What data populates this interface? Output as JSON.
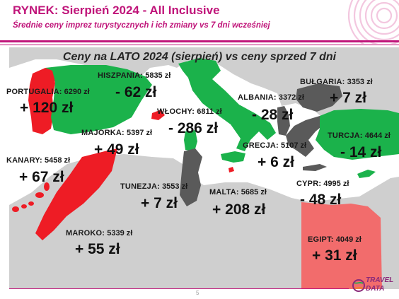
{
  "header": {
    "title": "RYNEK: Sierpień 2024 - All Inclusive",
    "subtitle": "Średnie ceny imprez turystycznych i ich zmiany vs 7 dni wcześniej"
  },
  "map": {
    "title": "Ceny na LATO 2024 (sierpień) vs ceny sprzed 7 dni",
    "color_legend": {
      "increase": "#ee1c25",
      "decrease": "#1bb24b",
      "small_change": "#5a5a5a",
      "other_land": "#cfcfcf",
      "sea": "#ffffff"
    },
    "destinations": [
      {
        "key": "portugalia",
        "name": "PORTUGALIA:",
        "price": "6290 zł",
        "change": "+ 120 zł",
        "color": "#ee1c25"
      },
      {
        "key": "hiszpania",
        "name": "HISZPANIA:",
        "price": "5835 zł",
        "change": "- 62 zł",
        "color": "#1bb24b"
      },
      {
        "key": "majorka",
        "name": "MAJORKA:",
        "price": "5397 zł",
        "change": "+ 49 zł",
        "color": "#ee1c25"
      },
      {
        "key": "wlochy",
        "name": "WŁOCHY:",
        "price": "6811 zł",
        "change": "- 286 zł",
        "color": "#1bb24b"
      },
      {
        "key": "albania",
        "name": "ALBANIA:",
        "price": "3372 zł",
        "change": "- 28 zł",
        "color": "#5a5a5a"
      },
      {
        "key": "bulgaria",
        "name": "BUŁGARIA:",
        "price": "3353 zł",
        "change": "+ 7 zł",
        "color": "#5a5a5a"
      },
      {
        "key": "turcja",
        "name": "TURCJA:",
        "price": "4644 zł",
        "change": "- 14 zł",
        "color": "#1bb24b"
      },
      {
        "key": "grecja",
        "name": "GRECJA:",
        "price": "5107 zł",
        "change": "+ 6 zł",
        "color": "#5a5a5a"
      },
      {
        "key": "kanary",
        "name": "KANARY:",
        "price": "5458 zł",
        "change": "+ 67 zł",
        "color": "#ee1c25"
      },
      {
        "key": "tunezja",
        "name": "TUNEZJA:",
        "price": "3553 zł",
        "change": "+ 7 zł",
        "color": "#5a5a5a"
      },
      {
        "key": "malta",
        "name": "MALTA:",
        "price": "5685 zł",
        "change": "+ 208 zł",
        "color": "#ee1c25"
      },
      {
        "key": "cypr",
        "name": "CYPR:",
        "price": "4995 zł",
        "change": "- 48 zł",
        "color": "#1bb24b"
      },
      {
        "key": "maroko",
        "name": "MAROKO:",
        "price": "5339 zł",
        "change": "+ 55 zł",
        "color": "#ee1c25"
      },
      {
        "key": "egipt",
        "name": "EGIPT:",
        "price": "4049 zł",
        "change": "+ 31 zł",
        "color": "#f26c6c"
      }
    ]
  },
  "footer": {
    "page_number": "5",
    "logo_line1": "TRAVEL",
    "logo_line2": "DATA"
  }
}
